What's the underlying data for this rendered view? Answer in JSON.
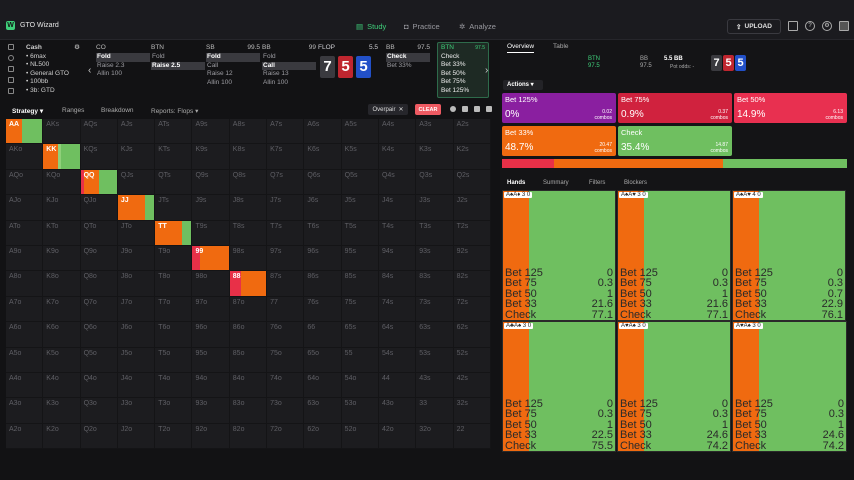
{
  "app": {
    "logo": "W",
    "title": "GTO Wizard",
    "nav": [
      {
        "label": "Study",
        "icon": "book-icon",
        "active": true
      },
      {
        "label": "Practice",
        "icon": "controller-icon",
        "active": false
      },
      {
        "label": "Analyze",
        "icon": "bulb-icon",
        "active": false
      }
    ],
    "upload_label": "UPLOAD"
  },
  "game": {
    "type": "Cash",
    "details": [
      "6max",
      "NL500",
      "General GTO",
      "100bb",
      "3b: GTD"
    ]
  },
  "positions": [
    {
      "name": "CO",
      "stack": "",
      "actions": [
        {
          "label": "Fold",
          "highlight": true
        },
        {
          "label": "Raise 2.3",
          "highlight": false
        },
        {
          "label": "Allin 100",
          "highlight": false
        }
      ]
    },
    {
      "name": "BTN",
      "stack": "",
      "actions": [
        {
          "label": "Fold",
          "highlight": false
        },
        {
          "label": "Raise 2.5",
          "highlight": true
        }
      ]
    },
    {
      "name": "SB",
      "stack": "99.5",
      "actions": [
        {
          "label": "Fold",
          "highlight": true
        },
        {
          "label": "Call",
          "highlight": false
        },
        {
          "label": "Raise 12",
          "highlight": false
        },
        {
          "label": "Allin 100",
          "highlight": false
        }
      ]
    },
    {
      "name": "BB",
      "stack": "99",
      "actions": [
        {
          "label": "Fold",
          "highlight": false
        },
        {
          "label": "Call",
          "highlight": true
        },
        {
          "label": "Raise 13",
          "highlight": false
        },
        {
          "label": "Allin 100",
          "highlight": false
        }
      ]
    }
  ],
  "flop": {
    "label": "FLOP",
    "pot": "5.5",
    "cards": [
      {
        "rank": "7",
        "color": "#3a3a3f"
      },
      {
        "rank": "5",
        "color": "#c0262f"
      },
      {
        "rank": "5",
        "color": "#2250c8"
      }
    ]
  },
  "bb_node": {
    "name": "BB",
    "stack": "97.5",
    "actions": [
      {
        "label": "Check",
        "highlight": true
      },
      {
        "label": "Bet 33%",
        "highlight": false
      }
    ]
  },
  "btn_node": {
    "name": "BTN",
    "stack": "97.5",
    "actions": [
      "Check",
      "Bet 33%",
      "Bet 50%",
      "Bet 75%",
      "Bet 125%"
    ]
  },
  "strategy_tabs": [
    "Strategy",
    "Ranges",
    "Breakdown",
    "Reports: Flops"
  ],
  "overpair_label": "Overpair",
  "clear_label": "CLEAR",
  "grid": [
    "AA",
    "AKs",
    "AQs",
    "AJs",
    "ATs",
    "A9s",
    "A8s",
    "A7s",
    "A6s",
    "A5s",
    "A4s",
    "A3s",
    "A2s",
    "AKo",
    "KK",
    "KQs",
    "KJs",
    "KTs",
    "K9s",
    "K8s",
    "K7s",
    "K6s",
    "K5s",
    "K4s",
    "K3s",
    "K2s",
    "AQo",
    "KQo",
    "QQ",
    "QJs",
    "QTs",
    "Q9s",
    "Q8s",
    "Q7s",
    "Q6s",
    "Q5s",
    "Q4s",
    "Q3s",
    "Q2s",
    "AJo",
    "KJo",
    "QJo",
    "JJ",
    "JTs",
    "J9s",
    "J8s",
    "J7s",
    "J6s",
    "J5s",
    "J4s",
    "J3s",
    "J2s",
    "ATo",
    "KTo",
    "QTo",
    "JTo",
    "TT",
    "T9s",
    "T8s",
    "T7s",
    "T6s",
    "T5s",
    "T4s",
    "T3s",
    "T2s",
    "A9o",
    "K9o",
    "Q9o",
    "J9o",
    "T9o",
    "99",
    "98s",
    "97s",
    "96s",
    "95s",
    "94s",
    "93s",
    "92s",
    "A8o",
    "K8o",
    "Q8o",
    "J8o",
    "T8o",
    "98o",
    "88",
    "87s",
    "86s",
    "85s",
    "84s",
    "83s",
    "82s",
    "A7o",
    "K7o",
    "Q7o",
    "J7o",
    "T7o",
    "97o",
    "87o",
    "77",
    "76s",
    "75s",
    "74s",
    "73s",
    "72s",
    "A6o",
    "K6o",
    "Q6o",
    "J6o",
    "T6o",
    "96o",
    "86o",
    "76o",
    "66",
    "65s",
    "64s",
    "63s",
    "62s",
    "A5o",
    "K5o",
    "Q5o",
    "J5o",
    "T5o",
    "95o",
    "85o",
    "75o",
    "65o",
    "55",
    "54s",
    "53s",
    "52s",
    "A4o",
    "K4o",
    "Q4o",
    "J4o",
    "T4o",
    "94o",
    "84o",
    "74o",
    "64o",
    "54o",
    "44",
    "43s",
    "42s",
    "A3o",
    "K3o",
    "Q3o",
    "J3o",
    "T3o",
    "93o",
    "83o",
    "73o",
    "63o",
    "53o",
    "43o",
    "33",
    "32s",
    "A2o",
    "K2o",
    "Q2o",
    "J2o",
    "T2o",
    "92o",
    "82o",
    "72o",
    "62o",
    "52o",
    "42o",
    "32o",
    "22"
  ],
  "active_hands": {
    "AA": [
      {
        "c": "#f06a10",
        "w": 45
      },
      {
        "c": "#6fbf60",
        "w": 55
      }
    ],
    "KK": [
      {
        "c": "#f06a10",
        "w": 40
      },
      {
        "c": "#8fd07a",
        "w": 10
      },
      {
        "c": "#6fbf60",
        "w": 50
      }
    ],
    "QQ": [
      {
        "c": "#e83048",
        "w": 10
      },
      {
        "c": "#f06a10",
        "w": 40
      },
      {
        "c": "#6fbf60",
        "w": 50
      }
    ],
    "JJ": [
      {
        "c": "#f06a10",
        "w": 75
      },
      {
        "c": "#6fbf60",
        "w": 25
      }
    ],
    "TT": [
      {
        "c": "#f06a10",
        "w": 75
      },
      {
        "c": "#6fbf60",
        "w": 25
      }
    ],
    "99": [
      {
        "c": "#e83048",
        "w": 20
      },
      {
        "c": "#f06a10",
        "w": 80
      }
    ],
    "88": [
      {
        "c": "#e83048",
        "w": 30
      },
      {
        "c": "#f06a10",
        "w": 70
      }
    ]
  },
  "right": {
    "tabs": [
      "Overview",
      "Table"
    ],
    "hand_info": {
      "pos": "BTN",
      "pos_stack": "97.5",
      "bb_pos": "BB",
      "bb_stack": "97.5",
      "pot": "5.5 BB",
      "pot_odds": "Pot odds: -"
    },
    "board": [
      {
        "rank": "7",
        "color": "#3a3a3f"
      },
      {
        "rank": "5",
        "color": "#c0262f"
      },
      {
        "rank": "5",
        "color": "#2250c8"
      }
    ],
    "actions_label": "Actions",
    "action_boxes": [
      {
        "name": "Bet 125%",
        "pct": "0%",
        "combos": "0.02",
        "color": "#8a1fa0"
      },
      {
        "name": "Bet 75%",
        "pct": "0.9%",
        "combos": "0.37",
        "color": "#d0223e"
      },
      {
        "name": "Bet 50%",
        "pct": "14.9%",
        "combos": "6.13",
        "color": "#e83050"
      },
      {
        "name": "Bet 33%",
        "pct": "48.7%",
        "combos": "20.47",
        "color": "#f06a10"
      },
      {
        "name": "Check",
        "pct": "35.4%",
        "combos": "14.87",
        "color": "#6fbf60"
      }
    ],
    "combos_label": "combos",
    "freq": [
      {
        "c": "#e83048",
        "w": 15
      },
      {
        "c": "#f06a10",
        "w": 49
      },
      {
        "c": "#6fbf60",
        "w": 36
      }
    ],
    "panel_tabs": [
      "Hands",
      "Summary",
      "Filters",
      "Blockers"
    ],
    "hand_cards": [
      {
        "cards": "A♠A♦ 3 0",
        "rows": [
          [
            "Bet 125",
            "0"
          ],
          [
            "Bet 75",
            "0.3"
          ],
          [
            "Bet 50",
            "1"
          ],
          [
            "Bet 33",
            "21.6"
          ],
          [
            "Check",
            "77.1"
          ]
        ]
      },
      {
        "cards": "A♠A♥ 3 0",
        "rows": [
          [
            "Bet 125",
            "0"
          ],
          [
            "Bet 75",
            "0.3"
          ],
          [
            "Bet 50",
            "1"
          ],
          [
            "Bet 33",
            "21.6"
          ],
          [
            "Check",
            "77.1"
          ]
        ]
      },
      {
        "cards": "A♠A♥ 4 0",
        "rows": [
          [
            "Bet 125",
            "0"
          ],
          [
            "Bet 75",
            "0.3"
          ],
          [
            "Bet 50",
            "0.7"
          ],
          [
            "Bet 33",
            "22.9"
          ],
          [
            "Check",
            "76.1"
          ]
        ]
      },
      {
        "cards": "A♣A♠ 3 0",
        "rows": [
          [
            "Bet 125",
            "0"
          ],
          [
            "Bet 75",
            "0.3"
          ],
          [
            "Bet 50",
            "1"
          ],
          [
            "Bet 33",
            "22.5"
          ],
          [
            "Check",
            "75.5"
          ]
        ]
      },
      {
        "cards": "A♥A♠ 3 0",
        "rows": [
          [
            "Bet 125",
            "0"
          ],
          [
            "Bet 75",
            "0.3"
          ],
          [
            "Bet 50",
            "1"
          ],
          [
            "Bet 33",
            "24.6"
          ],
          [
            "Check",
            "74.2"
          ]
        ]
      },
      {
        "cards": "A♥A♠ 3 0",
        "rows": [
          [
            "Bet 125",
            "0"
          ],
          [
            "Bet 75",
            "0.3"
          ],
          [
            "Bet 50",
            "1"
          ],
          [
            "Bet 33",
            "24.6"
          ],
          [
            "Check",
            "74.2"
          ]
        ]
      }
    ]
  }
}
